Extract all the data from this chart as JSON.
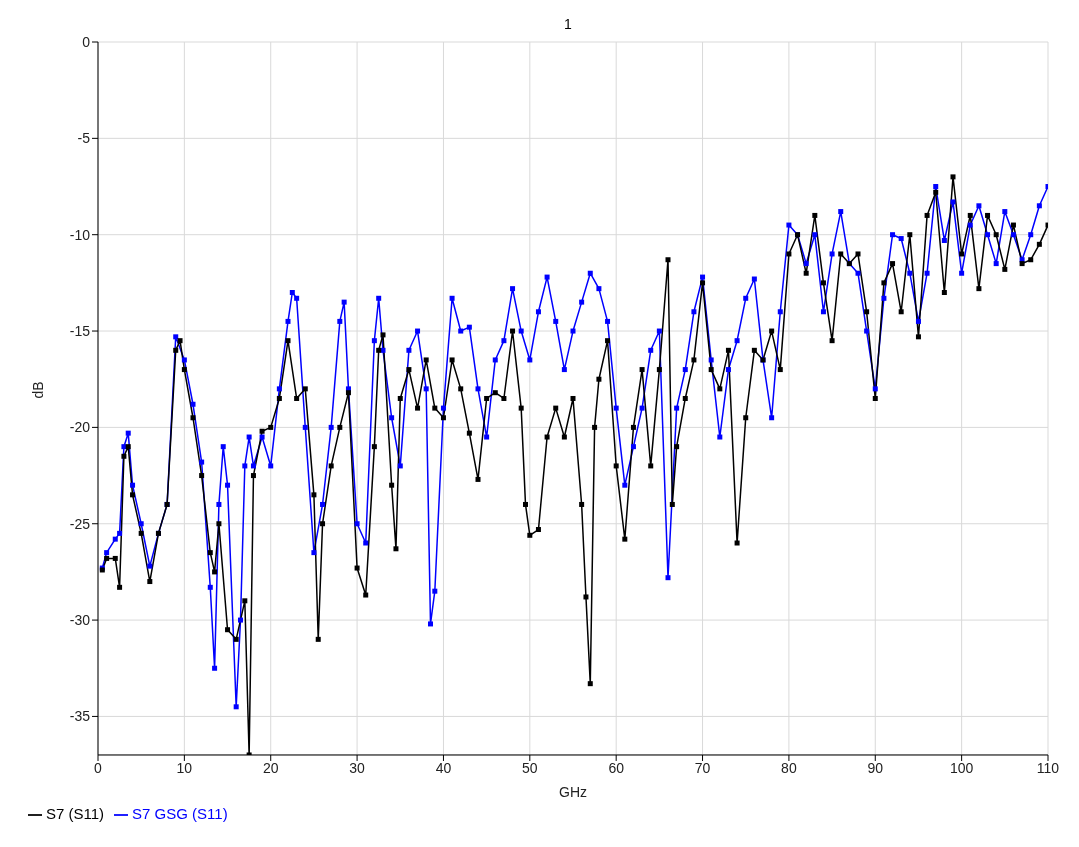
{
  "chart_data": {
    "type": "line",
    "title": "1",
    "xlabel": "GHz",
    "ylabel": "dB",
    "xlim": [
      0,
      110
    ],
    "xticks": [
      0,
      10,
      20,
      30,
      40,
      50,
      60,
      70,
      80,
      90,
      100,
      110
    ],
    "ylim": [
      -37,
      0
    ],
    "yticks": [
      0,
      -5,
      -10,
      -15,
      -20,
      -25,
      -30,
      -35
    ],
    "grid": true,
    "legend": "bottom left",
    "marker": "square",
    "line_style": "solid",
    "series": [
      {
        "name": "S7 GSG (S11)",
        "color": "#0000ff",
        "x": [
          0.5,
          1,
          2,
          2.5,
          3,
          3.5,
          4,
          5,
          6,
          7,
          8,
          9,
          10,
          11,
          12,
          13,
          13.5,
          14,
          14.5,
          15,
          16,
          16.5,
          17,
          17.5,
          18,
          19,
          20,
          21,
          22,
          22.5,
          23,
          24,
          25,
          26,
          27,
          28,
          28.5,
          29,
          30,
          31,
          32,
          32.5,
          33,
          34,
          35,
          36,
          37,
          38,
          38.5,
          39,
          40,
          41,
          42,
          43,
          44,
          45,
          46,
          47,
          48,
          49,
          50,
          51,
          52,
          53,
          54,
          55,
          56,
          57,
          58,
          59,
          60,
          61,
          62,
          63,
          64,
          65,
          66,
          67,
          68,
          69,
          70,
          71,
          72,
          73,
          74,
          75,
          76,
          77,
          78,
          79,
          80,
          81,
          82,
          83,
          84,
          85,
          86,
          87,
          88,
          89,
          90,
          91,
          92,
          93,
          94,
          95,
          96,
          97,
          98,
          99,
          100,
          101,
          102,
          103,
          104,
          105,
          106,
          107,
          108,
          109,
          110
        ],
        "values": [
          -27.3,
          -26.5,
          -25.8,
          -25.5,
          -21,
          -20.3,
          -23,
          -25,
          -27.2,
          -25.5,
          -24,
          -15.3,
          -16.5,
          -18.8,
          -21.8,
          -28.3,
          -32.5,
          -24,
          -21,
          -23,
          -34.5,
          -30,
          -22,
          -20.5,
          -22,
          -20.5,
          -22,
          -18,
          -14.5,
          -13,
          -13.3,
          -20,
          -26.5,
          -24,
          -20,
          -14.5,
          -13.5,
          -18,
          -25,
          -26,
          -15.5,
          -13.3,
          -16,
          -19.5,
          -22,
          -16,
          -15,
          -18,
          -30.2,
          -28.5,
          -19,
          -13.3,
          -15,
          -14.8,
          -18,
          -20.5,
          -16.5,
          -15.5,
          -12.8,
          -15,
          -16.5,
          -14,
          -12.2,
          -14.5,
          -17,
          -15,
          -13.5,
          -12,
          -12.8,
          -14.5,
          -19,
          -23,
          -21,
          -19,
          -16,
          -15,
          -27.8,
          -19,
          -17,
          -14,
          -12.2,
          -16.5,
          -20.5,
          -17,
          -15.5,
          -13.3,
          -12.3,
          -16.5,
          -19.5,
          -14,
          -9.5,
          -10,
          -11.5,
          -10,
          -14,
          -11,
          -8.8,
          -11.5,
          -12,
          -15,
          -18,
          -13.3,
          -10,
          -10.2,
          -12,
          -14.5,
          -12,
          -7.5,
          -10.3,
          -8.3,
          -12,
          -9.5,
          -8.5,
          -10,
          -11.5,
          -8.8,
          -10,
          -11.3,
          -10,
          -8.5,
          -7.5
        ]
      },
      {
        "name": "S7 (S11)",
        "color": "#000000",
        "x": [
          0.5,
          1,
          2,
          2.5,
          3,
          3.5,
          4,
          5,
          6,
          7,
          8,
          9,
          9.5,
          10,
          11,
          12,
          13,
          13.5,
          14,
          15,
          16,
          17,
          17.5,
          18,
          19,
          20,
          21,
          22,
          23,
          24,
          25,
          25.5,
          26,
          27,
          28,
          29,
          30,
          31,
          32,
          32.5,
          33,
          34,
          34.5,
          35,
          36,
          37,
          38,
          39,
          40,
          41,
          42,
          43,
          44,
          45,
          46,
          47,
          48,
          49,
          49.5,
          50,
          51,
          52,
          53,
          54,
          55,
          56,
          56.5,
          57,
          57.5,
          58,
          59,
          60,
          61,
          62,
          63,
          64,
          65,
          66,
          66.5,
          67,
          68,
          69,
          70,
          71,
          72,
          73,
          74,
          75,
          76,
          77,
          78,
          79,
          80,
          81,
          82,
          83,
          84,
          85,
          86,
          87,
          88,
          89,
          90,
          91,
          92,
          93,
          94,
          95,
          96,
          97,
          98,
          99,
          100,
          101,
          102,
          103,
          104,
          105,
          106,
          107,
          108,
          109,
          110
        ],
        "values": [
          -27.4,
          -26.8,
          -26.8,
          -28.3,
          -21.5,
          -21,
          -23.5,
          -25.5,
          -28,
          -25.5,
          -24,
          -16,
          -15.5,
          -17,
          -19.5,
          -22.5,
          -26.5,
          -27.5,
          -25,
          -30.5,
          -31,
          -29,
          -37,
          -22.5,
          -20.2,
          -20,
          -18.5,
          -15.5,
          -18.5,
          -18,
          -23.5,
          -31,
          -25,
          -22,
          -20,
          -18.2,
          -27.3,
          -28.7,
          -21,
          -16,
          -15.2,
          -23,
          -26.3,
          -18.5,
          -17,
          -19,
          -16.5,
          -19,
          -19.5,
          -16.5,
          -18,
          -20.3,
          -22.7,
          -18.5,
          -18.2,
          -18.5,
          -15,
          -19,
          -24,
          -25.6,
          -25.3,
          -20.5,
          -19,
          -20.5,
          -18.5,
          -24,
          -28.8,
          -33.3,
          -20,
          -17.5,
          -15.5,
          -22,
          -25.8,
          -20,
          -17,
          -22,
          -17,
          -11.3,
          -24,
          -21,
          -18.5,
          -16.5,
          -12.5,
          -17,
          -18,
          -16,
          -26,
          -19.5,
          -16,
          -16.5,
          -15,
          -17,
          -11,
          -10,
          -12,
          -9,
          -12.5,
          -15.5,
          -11,
          -11.5,
          -11,
          -14,
          -18.5,
          -12.5,
          -11.5,
          -14,
          -10,
          -15.3,
          -9,
          -7.8,
          -13,
          -7,
          -11,
          -9,
          -12.8,
          -9,
          -10,
          -11.8,
          -9.5,
          -11.5,
          -11.3,
          -10.5,
          -9.5
        ]
      }
    ]
  }
}
